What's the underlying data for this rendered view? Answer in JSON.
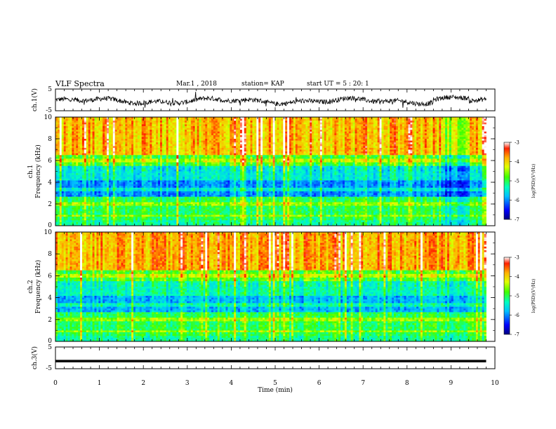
{
  "header": {
    "title": "VLF Spectra",
    "date": "Mar.1 , 2018",
    "station": "station= KAP",
    "start_ut": "start UT =  5 : 20: 1"
  },
  "chart_data": [
    {
      "type": "line",
      "panel": "ch1-waveform",
      "ylabel": "ch.1(V)",
      "ylim": [
        -5,
        5
      ],
      "yticks": [
        "5",
        "-5"
      ],
      "xlim": [
        0,
        10
      ],
      "series": [
        {
          "values_approx": "noisy waveform around -0.5 V, amplitude roughly ±2 V, slight rise near t=9 min"
        }
      ]
    },
    {
      "type": "heatmap",
      "panel": "ch1-spectrogram",
      "ylabel": "ch.1 Frequency (kHz)",
      "ylim": [
        0,
        10
      ],
      "yticks": [
        "0",
        "2",
        "4",
        "6",
        "8",
        "10"
      ],
      "xlim": [
        0,
        10
      ],
      "data_extent_min": 9.8,
      "colorbar": {
        "label": "log(PSD)(V²/Hz)",
        "range": [
          -7,
          -3
        ],
        "ticks": [
          "-3",
          "-4",
          "-5",
          "-6",
          "-7"
        ]
      }
    },
    {
      "type": "heatmap",
      "panel": "ch2-spectrogram",
      "ylabel": "ch.2 Frequency (kHz)",
      "ylim": [
        0,
        10
      ],
      "yticks": [
        "0",
        "2",
        "4",
        "6",
        "8",
        "10"
      ],
      "xlim": [
        0,
        10
      ],
      "data_extent_min": 9.8,
      "colorbar": {
        "label": "log(PSD)(V²/Hz)",
        "range": [
          -7,
          -3
        ],
        "ticks": [
          "-3",
          "-4",
          "-5",
          "-6",
          "-7"
        ]
      }
    },
    {
      "type": "line",
      "panel": "ch3-waveform",
      "ylabel": "ch.3(V)",
      "ylim": [
        -5,
        5
      ],
      "yticks": [
        "5",
        "-5"
      ],
      "xlim": [
        0,
        10
      ],
      "series": [
        {
          "values": [
            -1.5,
            -1.5
          ]
        }
      ]
    }
  ],
  "xaxis": {
    "label": "Time (min)",
    "ticks": [
      "0",
      "1",
      "2",
      "3",
      "4",
      "5",
      "6",
      "7",
      "8",
      "9",
      "10"
    ]
  }
}
